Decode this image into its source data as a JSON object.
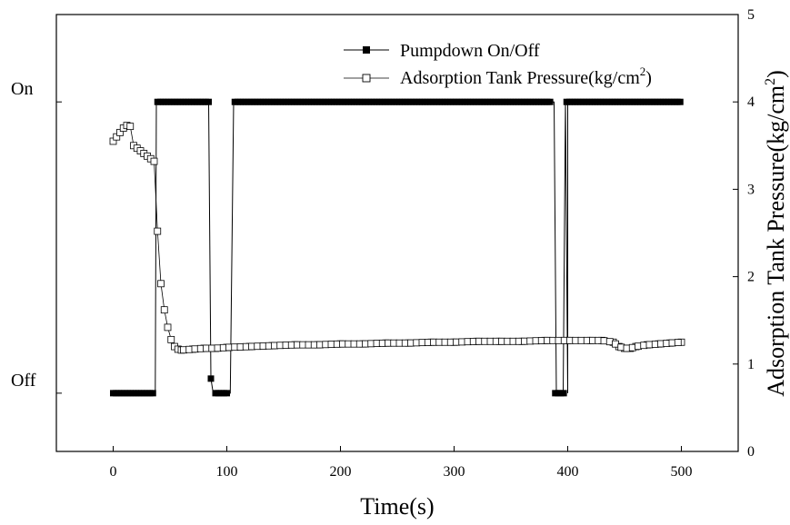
{
  "chart_data": {
    "type": "line",
    "xlabel": "Time(s)",
    "y2label_main": "Adsorption Tank Pressure(kg/cm",
    "y2label_sup": "2",
    "y2label_end": ")",
    "xlim": [
      -50,
      550
    ],
    "xticks": [
      0,
      100,
      200,
      300,
      400,
      500
    ],
    "y_left": {
      "categories": [
        "On",
        "Off"
      ],
      "values": {
        "On": 1,
        "Off": 0
      },
      "lim": [
        -0.2,
        1.3
      ]
    },
    "y_right": {
      "lim": [
        0,
        5
      ],
      "ticks": [
        0,
        1,
        2,
        3,
        4,
        5
      ]
    },
    "grid": false,
    "legend": {
      "position": "top-right",
      "items": [
        {
          "label": "Pumpdown On/Off",
          "marker": "filled-square"
        },
        {
          "label_main": "Adsorption Tank Pressure(kg/cm",
          "label_sup": "2",
          "label_end": ")",
          "marker": "open-square"
        }
      ]
    },
    "series": [
      {
        "name": "Pumpdown On/Off",
        "axis": "left",
        "marker": "filled-square",
        "x": [
          0,
          10,
          20,
          30,
          37,
          38,
          50,
          60,
          70,
          80,
          84,
          86,
          88,
          92,
          100,
          103,
          106,
          120,
          200,
          300,
          380,
          388,
          390,
          400,
          396,
          398,
          400,
          420,
          450,
          500
        ],
        "y": [
          0,
          0,
          0,
          0,
          0,
          1,
          1,
          1,
          1,
          1,
          1,
          0.05,
          0,
          0,
          0,
          0,
          1,
          1,
          1,
          1,
          1,
          1,
          0,
          0,
          0,
          1,
          1,
          1,
          1,
          1
        ]
      },
      {
        "name": "Adsorption Tank Pressure(kg/cm2)",
        "axis": "right",
        "marker": "open-square",
        "x": [
          0,
          3,
          6,
          9,
          12,
          15,
          18,
          21,
          24,
          27,
          30,
          33,
          36,
          39,
          42,
          45,
          48,
          51,
          54,
          57,
          60,
          70,
          80,
          90,
          100,
          120,
          140,
          160,
          180,
          200,
          220,
          240,
          260,
          280,
          300,
          320,
          340,
          360,
          380,
          400,
          420,
          430,
          440,
          445,
          450,
          455,
          460,
          470,
          480,
          490,
          500
        ],
        "y": [
          3.55,
          3.6,
          3.65,
          3.7,
          3.73,
          3.72,
          3.5,
          3.47,
          3.44,
          3.41,
          3.38,
          3.35,
          3.32,
          2.52,
          1.92,
          1.62,
          1.42,
          1.28,
          1.2,
          1.17,
          1.16,
          1.17,
          1.18,
          1.18,
          1.19,
          1.2,
          1.21,
          1.22,
          1.22,
          1.23,
          1.23,
          1.24,
          1.24,
          1.25,
          1.25,
          1.26,
          1.26,
          1.26,
          1.27,
          1.27,
          1.27,
          1.27,
          1.25,
          1.2,
          1.18,
          1.18,
          1.2,
          1.22,
          1.23,
          1.24,
          1.25
        ]
      }
    ]
  }
}
